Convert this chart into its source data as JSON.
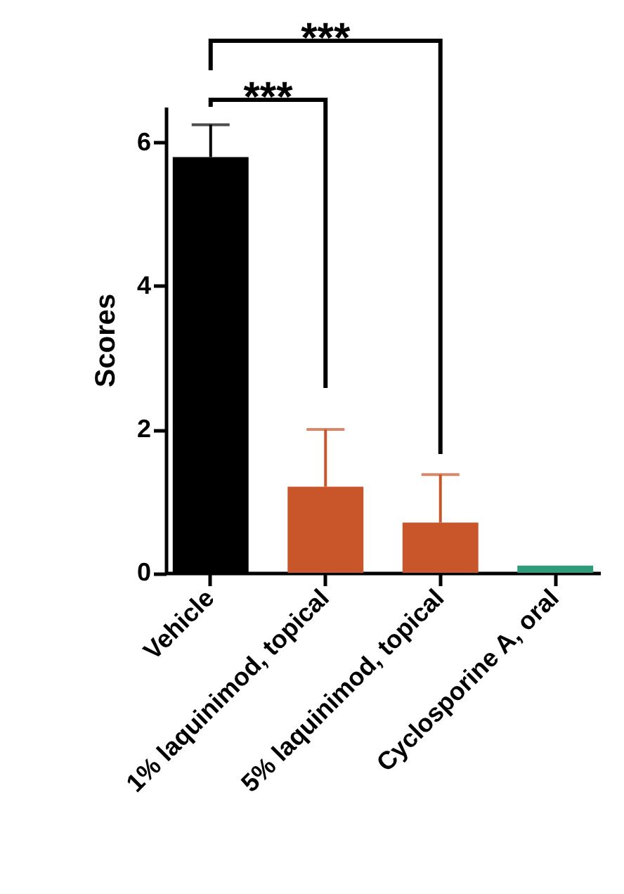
{
  "chart_data": {
    "type": "bar",
    "ylabel": "Scores",
    "categories": [
      "Vehicle",
      "1% laquinimod, topical",
      "5% laquinimod, topical",
      "Cyclosporine A, oral"
    ],
    "values": [
      5.8,
      1.2,
      0.7,
      0.1
    ],
    "colors": [
      "#000000",
      "#c9562b",
      "#c9562b",
      "#2e9c7a"
    ],
    "errors": [
      [
        5.8,
        6.25
      ],
      [
        1.2,
        2.0
      ],
      [
        0.7,
        1.37
      ],
      null
    ],
    "ylim": [
      0,
      6.5
    ],
    "yticks": [
      0,
      2,
      4,
      6
    ],
    "grid": false,
    "annotations": [
      "***",
      "***"
    ]
  }
}
